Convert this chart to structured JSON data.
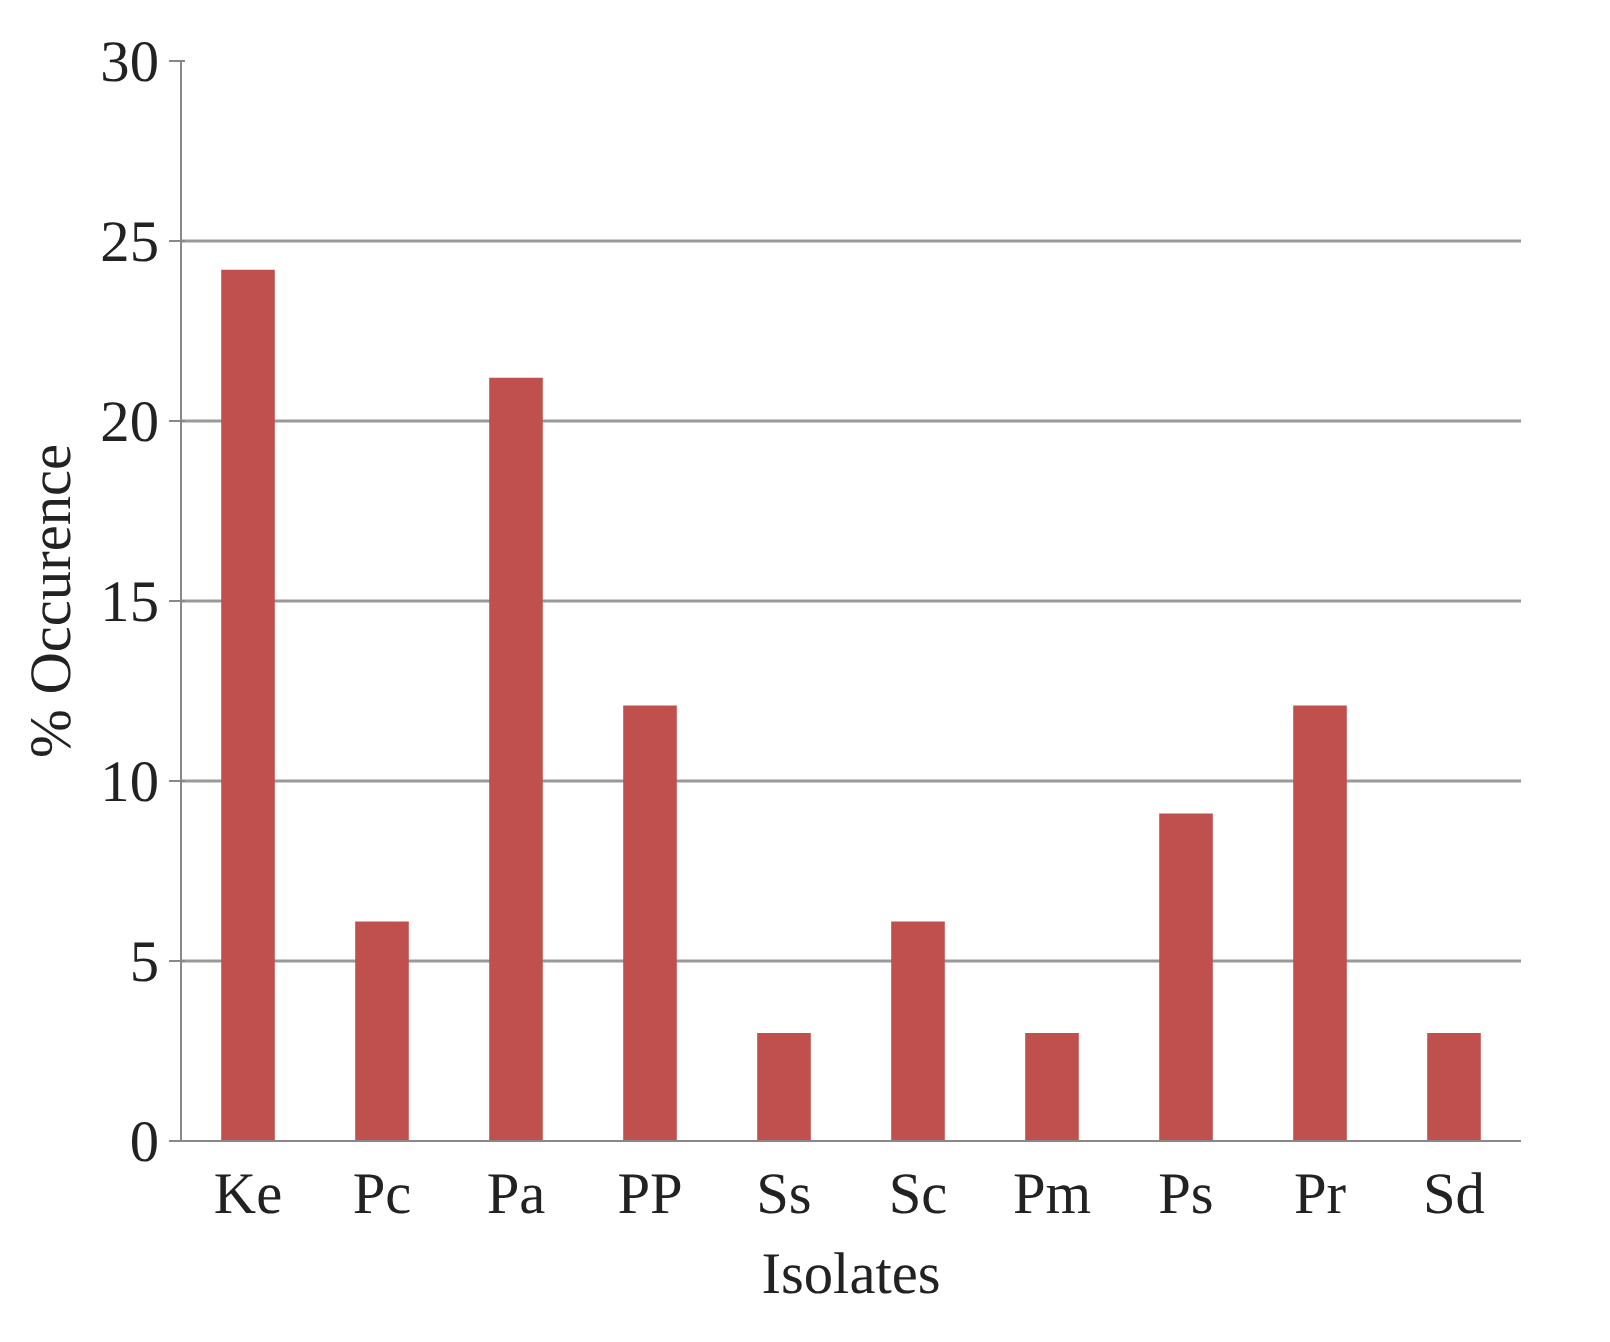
{
  "chart_data": {
    "type": "bar",
    "xlabel": "Isolates",
    "ylabel": "% Occurence",
    "categories": [
      "Ke",
      "Pc",
      "Pa",
      "PP",
      "Ss",
      "Sc",
      "Pm",
      "Ps",
      "Pr",
      "Sd"
    ],
    "values": [
      24.2,
      6.1,
      21.2,
      12.1,
      3.0,
      6.1,
      3.0,
      9.1,
      12.1,
      3.0
    ],
    "color": "#c0504d",
    "ylim": [
      0,
      30
    ],
    "yticks": [
      0,
      5,
      10,
      15,
      20,
      25,
      30
    ],
    "grid": "y"
  }
}
